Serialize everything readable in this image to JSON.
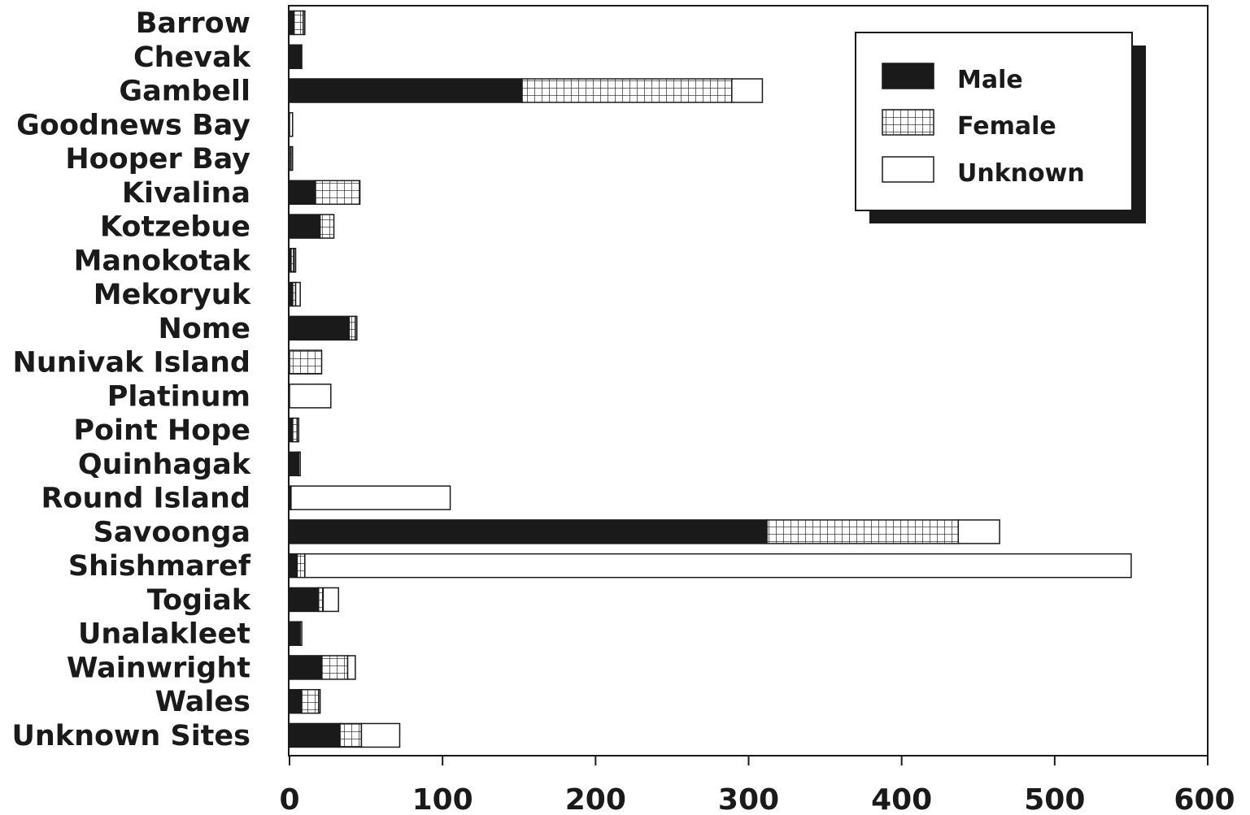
{
  "chart_data": {
    "type": "bar",
    "orientation": "horizontal",
    "stacked": true,
    "categories": [
      "Barrow",
      "Chevak",
      "Gambell",
      "Goodnews Bay",
      "Hooper Bay",
      "Kivalina",
      "Kotzebue",
      "Manokotak",
      "Mekoryuk",
      "Nome",
      "Nunivak Island",
      "Platinum",
      "Point Hope",
      "Quinhagak",
      "Round Island",
      "Savoonga",
      "Shishmaref",
      "Togiak",
      "Unalakleet",
      "Wainwright",
      "Wales",
      "Unknown Sites"
    ],
    "series": [
      {
        "name": "Male",
        "pattern": "solid",
        "values": [
          3,
          8,
          152,
          0,
          0,
          17,
          20,
          1,
          2,
          39,
          0,
          0,
          2,
          6,
          1,
          312,
          5,
          19,
          7,
          21,
          8,
          33
        ]
      },
      {
        "name": "Female",
        "pattern": "grid",
        "values": [
          6,
          0,
          137,
          0,
          1,
          29,
          9,
          2,
          2,
          4,
          21,
          0,
          3,
          0,
          0,
          125,
          5,
          3,
          0,
          17,
          11,
          14
        ]
      },
      {
        "name": "Unknown",
        "pattern": "empty",
        "values": [
          1,
          0,
          20,
          2,
          1,
          0,
          0,
          1,
          3,
          1,
          0,
          27,
          1,
          1,
          104,
          27,
          540,
          10,
          1,
          5,
          1,
          25
        ]
      }
    ],
    "xlim": [
      0,
      600
    ],
    "xticks": [
      "0",
      "100",
      "200",
      "300",
      "400",
      "500",
      "600"
    ],
    "title": "",
    "xlabel": "",
    "ylabel": "",
    "legend_position": "top-right",
    "colors": {
      "male": "#1a1a1a",
      "female_grid": "#1a1a1a",
      "bar_fill": "#ffffff",
      "frame": "#1a1a1a"
    }
  }
}
